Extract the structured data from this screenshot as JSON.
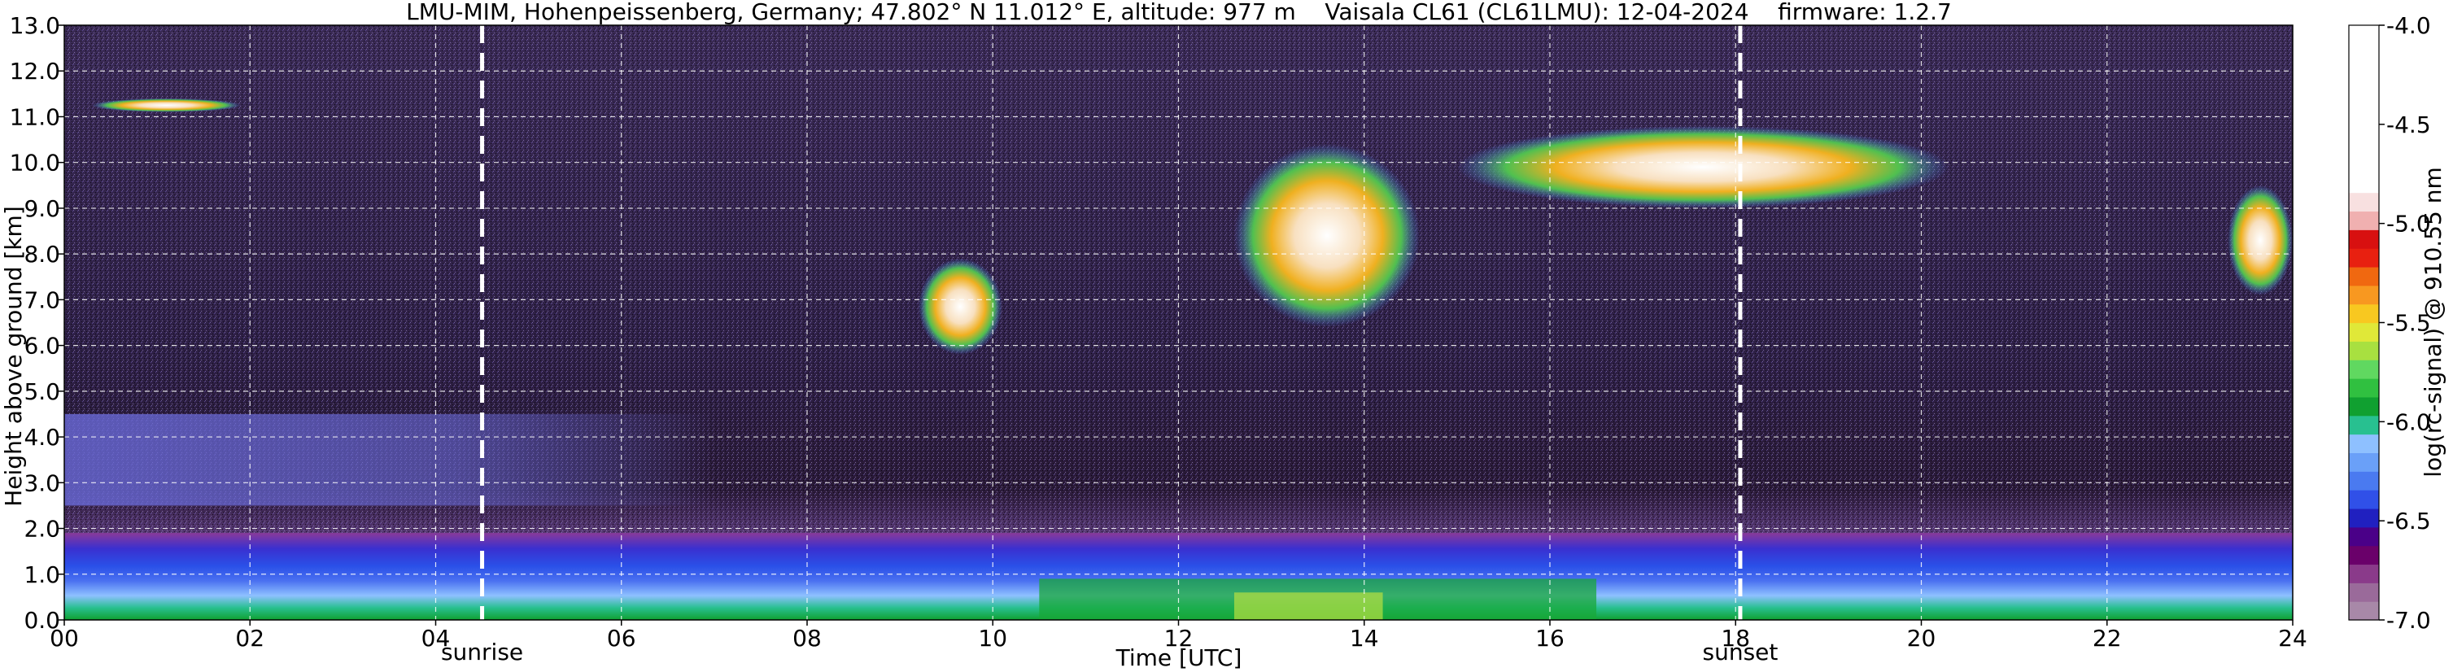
{
  "chart_data": {
    "type": "heatmap",
    "title": "LMU-MIM, Hohenpeissenberg, Germany; 47.802° N 11.012° E, altitude: 977 m    Vaisala CL61 (CL61LMU): 12-04-2024    firmware: 1.2.7",
    "xlabel": "Time [UTC]",
    "ylabel": "Height above ground [km]",
    "xlim": [
      0,
      24
    ],
    "ylim": [
      0,
      13
    ],
    "x_ticks": [
      "00",
      "02",
      "04",
      "06",
      "08",
      "10",
      "12",
      "14",
      "16",
      "18",
      "20",
      "22",
      "24"
    ],
    "x_tick_values": [
      0,
      2,
      4,
      6,
      8,
      10,
      12,
      14,
      16,
      18,
      20,
      22,
      24
    ],
    "y_ticks": [
      "0.0",
      "1.0",
      "2.0",
      "3.0",
      "4.0",
      "5.0",
      "6.0",
      "7.0",
      "8.0",
      "9.0",
      "10.0",
      "11.0",
      "12.0",
      "13.0"
    ],
    "y_tick_values": [
      0,
      1,
      2,
      3,
      4,
      5,
      6,
      7,
      8,
      9,
      10,
      11,
      12,
      13
    ],
    "grid": true,
    "sun_events": [
      {
        "label": "sunrise",
        "time": 4.5
      },
      {
        "label": "sunset",
        "time": 18.05
      }
    ],
    "colorbar": {
      "label": "log(rc-signal) @ 910.55 nm",
      "min": -7.0,
      "max": -4.0,
      "ticks": [
        "-4.0",
        "-4.5",
        "-5.0",
        "-5.5",
        "-6.0",
        "-6.5",
        "-7.0"
      ],
      "tick_values": [
        -4.0,
        -4.5,
        -5.0,
        -5.5,
        -6.0,
        -6.5,
        -7.0
      ],
      "colors": [
        "#a888a8",
        "#9a6a9a",
        "#8a3a8a",
        "#6a006a",
        "#4a0088",
        "#2020c0",
        "#3050e8",
        "#4a7af0",
        "#6aa0f8",
        "#8ec0ff",
        "#28c090",
        "#10a030",
        "#30c040",
        "#60d860",
        "#a8e040",
        "#e0e838",
        "#f8c820",
        "#f89820",
        "#f06810",
        "#e82010",
        "#d81010",
        "#f0b0b0",
        "#f8e0e0",
        "#ffffff"
      ]
    },
    "features": [
      {
        "name": "boundary layer aerosol",
        "x": [
          0,
          24
        ],
        "y": [
          0,
          1.9
        ]
      },
      {
        "name": "residual aerosol layer",
        "x": [
          0,
          7
        ],
        "y": [
          2.5,
          4.5
        ]
      },
      {
        "name": "cirrus cloud",
        "x": [
          0.3,
          1.9
        ],
        "y": [
          11.1,
          11.4
        ]
      },
      {
        "name": "cirrus cloud",
        "x": [
          9.2,
          10.1
        ],
        "y": [
          5.8,
          7.9
        ]
      },
      {
        "name": "cirrus cloud",
        "x": [
          12.6,
          14.6
        ],
        "y": [
          6.4,
          10.4
        ]
      },
      {
        "name": "cirrus cloud",
        "x": [
          15.0,
          20.3
        ],
        "y": [
          9.0,
          10.8
        ]
      },
      {
        "name": "cirrus cloud",
        "x": [
          23.3,
          24
        ],
        "y": [
          7.1,
          9.5
        ]
      }
    ]
  }
}
